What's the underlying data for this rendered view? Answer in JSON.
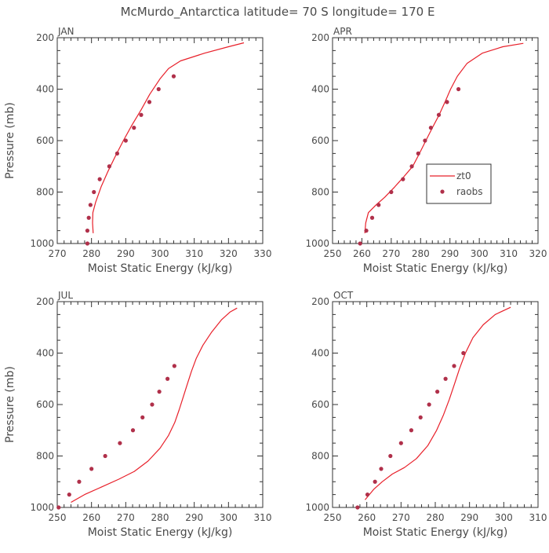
{
  "figure_title": "McMurdo_Antarctica  latitude= 70 S longitude= 170 E",
  "colors": {
    "model_line": "#e8202a",
    "obs_point": "#b0304a",
    "axis": "#333333",
    "text": "#4a4a4a"
  },
  "chart_data": [
    {
      "type": "line",
      "panel_label": "JAN",
      "xlabel": "Moist Static Energy (kJ/kg)",
      "ylabel": "Pressure (mb)",
      "xlim": [
        270,
        330
      ],
      "xticks": [
        270,
        280,
        290,
        300,
        310,
        320,
        330
      ],
      "ylim": [
        1000,
        200
      ],
      "yticks": [
        200,
        400,
        600,
        800,
        1000
      ],
      "legend": null,
      "series": [
        {
          "name": "zt0",
          "kind": "line",
          "points": [
            [
              280.5,
              960
            ],
            [
              280.3,
              920
            ],
            [
              280.4,
              880
            ],
            [
              281.2,
              840
            ],
            [
              282.8,
              780
            ],
            [
              284.8,
              720
            ],
            [
              287.0,
              660
            ],
            [
              289.3,
              600
            ],
            [
              291.8,
              540
            ],
            [
              294.5,
              480
            ],
            [
              297.0,
              420
            ],
            [
              300.0,
              360
            ],
            [
              302.5,
              320
            ],
            [
              306.0,
              290
            ],
            [
              313.0,
              260
            ],
            [
              320.0,
              235
            ],
            [
              324.5,
              220
            ]
          ]
        },
        {
          "name": "raobs",
          "kind": "points",
          "points": [
            [
              278.8,
              1000
            ],
            [
              278.8,
              950
            ],
            [
              279.2,
              900
            ],
            [
              279.7,
              850
            ],
            [
              280.7,
              800
            ],
            [
              282.4,
              750
            ],
            [
              285.2,
              700
            ],
            [
              287.5,
              650
            ],
            [
              290.0,
              600
            ],
            [
              292.4,
              550
            ],
            [
              294.5,
              500
            ],
            [
              296.9,
              450
            ],
            [
              299.6,
              400
            ],
            [
              304.0,
              350
            ]
          ]
        }
      ]
    },
    {
      "type": "line",
      "panel_label": "APR",
      "xlabel": "Moist Static Energy (kJ/kg)",
      "ylabel": "",
      "xlim": [
        250,
        320
      ],
      "xticks": [
        250,
        260,
        270,
        280,
        290,
        300,
        310,
        320
      ],
      "ylim": [
        1000,
        200
      ],
      "yticks": [
        200,
        400,
        600,
        800,
        1000
      ],
      "legend": {
        "placement": "right",
        "entries": [
          "zt0",
          "raobs"
        ]
      },
      "series": [
        {
          "name": "zt0",
          "kind": "line",
          "points": [
            [
              261.0,
              960
            ],
            [
              261.3,
              920
            ],
            [
              262.2,
              880
            ],
            [
              264.8,
              850
            ],
            [
              267.8,
              820
            ],
            [
              271.2,
              780
            ],
            [
              274.3,
              740
            ],
            [
              277.3,
              700
            ],
            [
              279.6,
              650
            ],
            [
              281.8,
              600
            ],
            [
              284.0,
              550
            ],
            [
              286.3,
              500
            ],
            [
              288.3,
              450
            ],
            [
              290.2,
              400
            ],
            [
              292.5,
              350
            ],
            [
              295.8,
              300
            ],
            [
              301.0,
              260
            ],
            [
              308.0,
              235
            ],
            [
              315.0,
              222
            ]
          ]
        },
        {
          "name": "raobs",
          "kind": "points",
          "points": [
            [
              259.4,
              1000
            ],
            [
              261.5,
              950
            ],
            [
              263.5,
              900
            ],
            [
              265.7,
              850
            ],
            [
              270.0,
              800
            ],
            [
              274.0,
              750
            ],
            [
              277.0,
              700
            ],
            [
              279.2,
              650
            ],
            [
              281.5,
              600
            ],
            [
              283.5,
              550
            ],
            [
              286.2,
              500
            ],
            [
              289.0,
              450
            ],
            [
              292.9,
              400
            ]
          ]
        }
      ]
    },
    {
      "type": "line",
      "panel_label": "JUL",
      "xlabel": "Moist Static Energy (kJ/kg)",
      "ylabel": "Pressure (mb)",
      "xlim": [
        250,
        310
      ],
      "xticks": [
        250,
        260,
        270,
        280,
        290,
        300,
        310
      ],
      "ylim": [
        1000,
        200
      ],
      "yticks": [
        200,
        400,
        600,
        800,
        1000
      ],
      "legend": null,
      "series": [
        {
          "name": "zt0",
          "kind": "line",
          "points": [
            [
              254.0,
              980
            ],
            [
              258.0,
              950
            ],
            [
              263.0,
              920
            ],
            [
              268.0,
              890
            ],
            [
              272.5,
              860
            ],
            [
              276.5,
              820
            ],
            [
              280.0,
              770
            ],
            [
              282.5,
              720
            ],
            [
              284.3,
              670
            ],
            [
              285.6,
              620
            ],
            [
              286.8,
              570
            ],
            [
              288.0,
              520
            ],
            [
              289.2,
              470
            ],
            [
              290.6,
              420
            ],
            [
              292.5,
              370
            ],
            [
              295.0,
              320
            ],
            [
              298.0,
              270
            ],
            [
              300.5,
              240
            ],
            [
              302.5,
              225
            ]
          ]
        },
        {
          "name": "raobs",
          "kind": "points",
          "points": [
            [
              250.4,
              1000
            ],
            [
              253.5,
              950
            ],
            [
              256.4,
              900
            ],
            [
              260.0,
              850
            ],
            [
              264.0,
              800
            ],
            [
              268.3,
              750
            ],
            [
              272.1,
              700
            ],
            [
              274.9,
              650
            ],
            [
              277.7,
              600
            ],
            [
              279.8,
              550
            ],
            [
              282.2,
              500
            ],
            [
              284.2,
              450
            ]
          ]
        }
      ]
    },
    {
      "type": "line",
      "panel_label": "OCT",
      "xlabel": "Moist Static Energy (kJ/kg)",
      "ylabel": "",
      "xlim": [
        250,
        310
      ],
      "xticks": [
        250,
        260,
        270,
        280,
        290,
        300,
        310
      ],
      "ylim": [
        1000,
        200
      ],
      "yticks": [
        200,
        400,
        600,
        800,
        1000
      ],
      "legend": null,
      "series": [
        {
          "name": "zt0",
          "kind": "line",
          "points": [
            [
              259.5,
              970
            ],
            [
              262.0,
              930
            ],
            [
              264.5,
              900
            ],
            [
              267.5,
              870
            ],
            [
              271.0,
              845
            ],
            [
              274.5,
              810
            ],
            [
              277.8,
              760
            ],
            [
              280.4,
              700
            ],
            [
              282.4,
              640
            ],
            [
              284.1,
              580
            ],
            [
              285.6,
              520
            ],
            [
              287.1,
              460
            ],
            [
              288.8,
              400
            ],
            [
              291.0,
              340
            ],
            [
              294.0,
              290
            ],
            [
              297.5,
              250
            ],
            [
              302.0,
              222
            ]
          ]
        },
        {
          "name": "raobs",
          "kind": "points",
          "points": [
            [
              257.3,
              1000
            ],
            [
              260.2,
              950
            ],
            [
              262.4,
              900
            ],
            [
              264.2,
              850
            ],
            [
              266.9,
              800
            ],
            [
              270.0,
              750
            ],
            [
              273.0,
              700
            ],
            [
              275.7,
              650
            ],
            [
              278.2,
              600
            ],
            [
              280.6,
              550
            ],
            [
              283.0,
              500
            ],
            [
              285.5,
              450
            ],
            [
              288.2,
              400
            ]
          ]
        }
      ]
    }
  ]
}
